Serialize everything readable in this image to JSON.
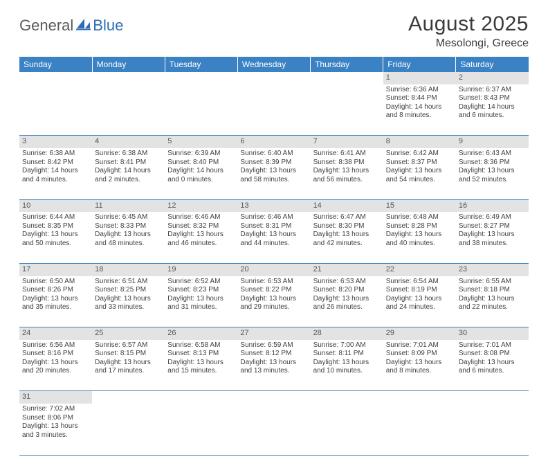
{
  "logo": {
    "text1": "General",
    "text2": "Blue"
  },
  "title": "August 2025",
  "location": "Mesolongi, Greece",
  "colors": {
    "header_bg": "#3b82c4",
    "header_text": "#ffffff",
    "daynum_bg": "#e3e3e3",
    "daynum_text": "#555555",
    "cell_text": "#404040",
    "border": "#3b82c4",
    "logo_gray": "#5a5a5a",
    "logo_blue": "#2d6db3"
  },
  "day_headers": [
    "Sunday",
    "Monday",
    "Tuesday",
    "Wednesday",
    "Thursday",
    "Friday",
    "Saturday"
  ],
  "weeks": [
    [
      null,
      null,
      null,
      null,
      null,
      {
        "n": "1",
        "sunrise": "Sunrise: 6:36 AM",
        "sunset": "Sunset: 8:44 PM",
        "day1": "Daylight: 14 hours",
        "day2": "and 8 minutes."
      },
      {
        "n": "2",
        "sunrise": "Sunrise: 6:37 AM",
        "sunset": "Sunset: 8:43 PM",
        "day1": "Daylight: 14 hours",
        "day2": "and 6 minutes."
      }
    ],
    [
      {
        "n": "3",
        "sunrise": "Sunrise: 6:38 AM",
        "sunset": "Sunset: 8:42 PM",
        "day1": "Daylight: 14 hours",
        "day2": "and 4 minutes."
      },
      {
        "n": "4",
        "sunrise": "Sunrise: 6:38 AM",
        "sunset": "Sunset: 8:41 PM",
        "day1": "Daylight: 14 hours",
        "day2": "and 2 minutes."
      },
      {
        "n": "5",
        "sunrise": "Sunrise: 6:39 AM",
        "sunset": "Sunset: 8:40 PM",
        "day1": "Daylight: 14 hours",
        "day2": "and 0 minutes."
      },
      {
        "n": "6",
        "sunrise": "Sunrise: 6:40 AM",
        "sunset": "Sunset: 8:39 PM",
        "day1": "Daylight: 13 hours",
        "day2": "and 58 minutes."
      },
      {
        "n": "7",
        "sunrise": "Sunrise: 6:41 AM",
        "sunset": "Sunset: 8:38 PM",
        "day1": "Daylight: 13 hours",
        "day2": "and 56 minutes."
      },
      {
        "n": "8",
        "sunrise": "Sunrise: 6:42 AM",
        "sunset": "Sunset: 8:37 PM",
        "day1": "Daylight: 13 hours",
        "day2": "and 54 minutes."
      },
      {
        "n": "9",
        "sunrise": "Sunrise: 6:43 AM",
        "sunset": "Sunset: 8:36 PM",
        "day1": "Daylight: 13 hours",
        "day2": "and 52 minutes."
      }
    ],
    [
      {
        "n": "10",
        "sunrise": "Sunrise: 6:44 AM",
        "sunset": "Sunset: 8:35 PM",
        "day1": "Daylight: 13 hours",
        "day2": "and 50 minutes."
      },
      {
        "n": "11",
        "sunrise": "Sunrise: 6:45 AM",
        "sunset": "Sunset: 8:33 PM",
        "day1": "Daylight: 13 hours",
        "day2": "and 48 minutes."
      },
      {
        "n": "12",
        "sunrise": "Sunrise: 6:46 AM",
        "sunset": "Sunset: 8:32 PM",
        "day1": "Daylight: 13 hours",
        "day2": "and 46 minutes."
      },
      {
        "n": "13",
        "sunrise": "Sunrise: 6:46 AM",
        "sunset": "Sunset: 8:31 PM",
        "day1": "Daylight: 13 hours",
        "day2": "and 44 minutes."
      },
      {
        "n": "14",
        "sunrise": "Sunrise: 6:47 AM",
        "sunset": "Sunset: 8:30 PM",
        "day1": "Daylight: 13 hours",
        "day2": "and 42 minutes."
      },
      {
        "n": "15",
        "sunrise": "Sunrise: 6:48 AM",
        "sunset": "Sunset: 8:28 PM",
        "day1": "Daylight: 13 hours",
        "day2": "and 40 minutes."
      },
      {
        "n": "16",
        "sunrise": "Sunrise: 6:49 AM",
        "sunset": "Sunset: 8:27 PM",
        "day1": "Daylight: 13 hours",
        "day2": "and 38 minutes."
      }
    ],
    [
      {
        "n": "17",
        "sunrise": "Sunrise: 6:50 AM",
        "sunset": "Sunset: 8:26 PM",
        "day1": "Daylight: 13 hours",
        "day2": "and 35 minutes."
      },
      {
        "n": "18",
        "sunrise": "Sunrise: 6:51 AM",
        "sunset": "Sunset: 8:25 PM",
        "day1": "Daylight: 13 hours",
        "day2": "and 33 minutes."
      },
      {
        "n": "19",
        "sunrise": "Sunrise: 6:52 AM",
        "sunset": "Sunset: 8:23 PM",
        "day1": "Daylight: 13 hours",
        "day2": "and 31 minutes."
      },
      {
        "n": "20",
        "sunrise": "Sunrise: 6:53 AM",
        "sunset": "Sunset: 8:22 PM",
        "day1": "Daylight: 13 hours",
        "day2": "and 29 minutes."
      },
      {
        "n": "21",
        "sunrise": "Sunrise: 6:53 AM",
        "sunset": "Sunset: 8:20 PM",
        "day1": "Daylight: 13 hours",
        "day2": "and 26 minutes."
      },
      {
        "n": "22",
        "sunrise": "Sunrise: 6:54 AM",
        "sunset": "Sunset: 8:19 PM",
        "day1": "Daylight: 13 hours",
        "day2": "and 24 minutes."
      },
      {
        "n": "23",
        "sunrise": "Sunrise: 6:55 AM",
        "sunset": "Sunset: 8:18 PM",
        "day1": "Daylight: 13 hours",
        "day2": "and 22 minutes."
      }
    ],
    [
      {
        "n": "24",
        "sunrise": "Sunrise: 6:56 AM",
        "sunset": "Sunset: 8:16 PM",
        "day1": "Daylight: 13 hours",
        "day2": "and 20 minutes."
      },
      {
        "n": "25",
        "sunrise": "Sunrise: 6:57 AM",
        "sunset": "Sunset: 8:15 PM",
        "day1": "Daylight: 13 hours",
        "day2": "and 17 minutes."
      },
      {
        "n": "26",
        "sunrise": "Sunrise: 6:58 AM",
        "sunset": "Sunset: 8:13 PM",
        "day1": "Daylight: 13 hours",
        "day2": "and 15 minutes."
      },
      {
        "n": "27",
        "sunrise": "Sunrise: 6:59 AM",
        "sunset": "Sunset: 8:12 PM",
        "day1": "Daylight: 13 hours",
        "day2": "and 13 minutes."
      },
      {
        "n": "28",
        "sunrise": "Sunrise: 7:00 AM",
        "sunset": "Sunset: 8:11 PM",
        "day1": "Daylight: 13 hours",
        "day2": "and 10 minutes."
      },
      {
        "n": "29",
        "sunrise": "Sunrise: 7:01 AM",
        "sunset": "Sunset: 8:09 PM",
        "day1": "Daylight: 13 hours",
        "day2": "and 8 minutes."
      },
      {
        "n": "30",
        "sunrise": "Sunrise: 7:01 AM",
        "sunset": "Sunset: 8:08 PM",
        "day1": "Daylight: 13 hours",
        "day2": "and 6 minutes."
      }
    ],
    [
      {
        "n": "31",
        "sunrise": "Sunrise: 7:02 AM",
        "sunset": "Sunset: 8:06 PM",
        "day1": "Daylight: 13 hours",
        "day2": "and 3 minutes."
      },
      null,
      null,
      null,
      null,
      null,
      null
    ]
  ]
}
